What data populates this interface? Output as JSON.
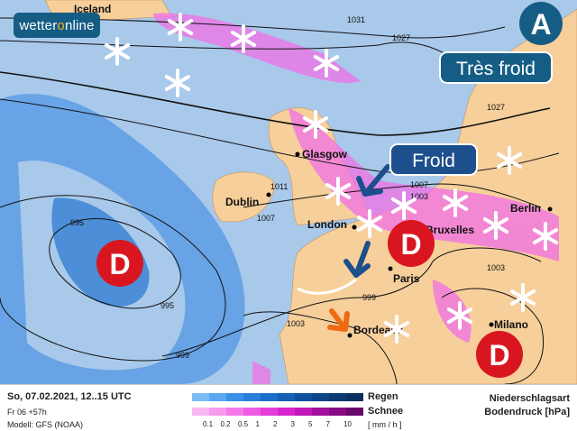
{
  "map": {
    "cities": [
      {
        "name": "Iceland"
      },
      {
        "name": "Glasgow"
      },
      {
        "name": "Dublin"
      },
      {
        "name": "London"
      },
      {
        "name": "Bruxelles"
      },
      {
        "name": "Berlin"
      },
      {
        "name": "Paris"
      },
      {
        "name": "Bordeaux"
      },
      {
        "name": "Milano"
      }
    ],
    "isobars": [
      "1031",
      "1027",
      "1027",
      "1011",
      "1007",
      "1007",
      "1003",
      "995",
      "995",
      "999",
      "999",
      "1003",
      "1003"
    ],
    "low_label": "D",
    "high_label": "A",
    "callouts": {
      "very_cold": "Très froid",
      "cold": "Froid"
    },
    "colors": {
      "ocean": "#a9c9ea",
      "land": "#f6cf9b",
      "low": "#d9161f",
      "high": "#155d84",
      "callout": "#1d4f8c"
    }
  },
  "logo": {
    "text_a": "wetter",
    "text_b": "o",
    "text_c": "nline"
  },
  "legend": {
    "date": "So, 07.02.2021, 12..15 UTC",
    "run": "Fr 06 +57h",
    "model": "Modell: GFS (NOAA)",
    "rain": "Regen",
    "snow": "Schnee",
    "unit": "[ mm / h ]",
    "ticks": [
      "0.1",
      "0.2",
      "0.5",
      "1",
      "2",
      "3",
      "5",
      "7",
      "10"
    ],
    "title1": "Niederschlagsart",
    "title2": "Bodendruck [hPa]",
    "rain_colors": [
      "#7bbcf5",
      "#5aa6ef",
      "#3a90e6",
      "#2a7fd8",
      "#1d6ec8",
      "#155fb4",
      "#0f519e",
      "#0c4588",
      "#0a3a72",
      "#0a3060"
    ],
    "snow_colors": [
      "#f9b8f2",
      "#f79aee",
      "#f47ae9",
      "#ef5ae3",
      "#e63cda",
      "#d726cc",
      "#bf17b6",
      "#a30f9c",
      "#860b82",
      "#6a086a"
    ]
  }
}
